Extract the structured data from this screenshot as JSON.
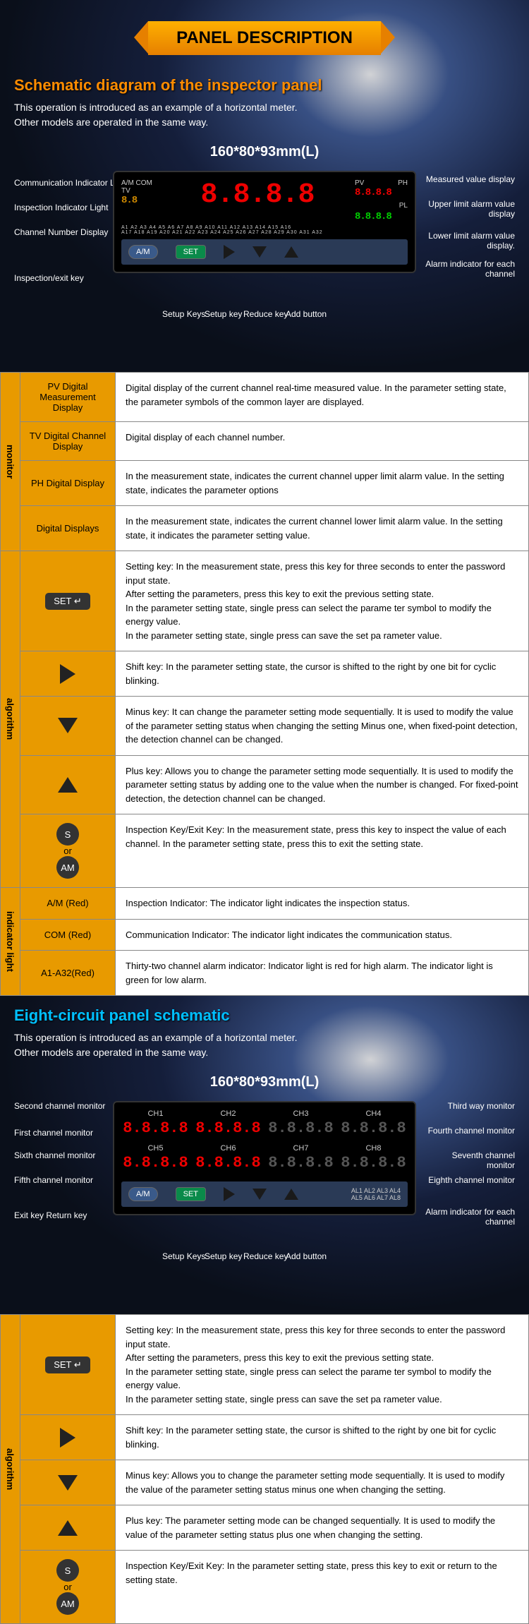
{
  "banner": "PANEL DESCRIPTION",
  "section1": {
    "title": "Schematic diagram of the inspector panel",
    "intro": "This operation is introduced as an example of a horizontal meter.\nOther models are operated in the same way.",
    "dim": "160*80*93mm(L)",
    "callouts_left": [
      "Communication Indicator Lamp",
      "Inspection Indicator Light",
      "Channel Number Display",
      "Inspection/exit key"
    ],
    "callouts_right": [
      "Measured value display",
      "Upper limit alarm value display",
      "Lower limit alarm value display.",
      "Alarm indicator for each channel"
    ],
    "btn_labels": [
      "Setup Keys",
      "Setup key",
      "Reduce key",
      "Add button"
    ],
    "panel": {
      "tv": "TV",
      "pv": "PV",
      "ph": "PH",
      "pl": "PL",
      "am_com": "A/M  COM",
      "big": "8.8.8.8",
      "big_tv": "8.8",
      "ph_val": "8.8.8.8",
      "pl_val": "8.8.8.8",
      "btn_am": "A/M",
      "btn_set": "SET",
      "ch1": "A1  A2  A3  A4  A5  A6  A7  A8  A9  A10  A11  A12  A13  A14  A15  A16",
      "ch2": "A17 A18 A19 A20 A21 A22 A23 A24 A25 A26 A27 A28 A29 A30 A31 A32"
    }
  },
  "table1": {
    "monitor": [
      {
        "k": "PV Digital Measurement Display",
        "v": "Digital display of the current channel real-time measured value. In the parameter setting state, the parameter symbols of the common layer are displayed."
      },
      {
        "k": "TV Digital Channel Display",
        "v": "Digital display of each channel number."
      },
      {
        "k": "PH Digital Display",
        "v": "In the measurement state, indicates the current channel upper limit alarm value. In the setting state, indicates the parameter options"
      },
      {
        "k": "Digital Displays",
        "v": "In the measurement state, indicates the current channel lower limit alarm value. In the setting state, it indicates the parameter setting value."
      }
    ],
    "algorithm": [
      {
        "icon": "set",
        "v": "Setting key: In the measurement state, press this key for three seconds to enter the password input state.\nAfter setting the parameters, press this key to exit the previous setting state.\nIn the parameter setting state, single press can select the parame ter symbol to modify the energy value.\nIn the parameter setting state, single press can save the set pa rameter value."
      },
      {
        "icon": "right",
        "v": "Shift key: In the parameter setting state, the cursor is shifted to the right by one bit for cyclic blinking."
      },
      {
        "icon": "down",
        "v": "Minus key: It can change the parameter setting mode sequentially. It is used to modify the value of the parameter setting status when changing the setting Minus one, when fixed-point detection, the detection channel can be changed."
      },
      {
        "icon": "up",
        "v": "Plus key: Allows you to change the parameter setting mode sequentially. It is used to modify the parameter setting status by adding one to the value when the number is changed. For fixed-point detection, the detection channel can be changed."
      },
      {
        "icon": "s_am",
        "v": "Inspection Key/Exit Key: In the measurement state, press this key to inspect the value of each channel. In the parameter setting state, press this to exit the setting state."
      }
    ],
    "indicator": [
      {
        "k": "A/M (Red)",
        "v": "Inspection Indicator: The indicator light indicates the inspection status."
      },
      {
        "k": "COM (Red)",
        "v": "Communication Indicator: The indicator light indicates the communication status."
      },
      {
        "k": "A1-A32(Red)",
        "v": "Thirty-two channel alarm indicator: Indicator light is red for high alarm. The indicator light is green for low alarm."
      }
    ],
    "labels": {
      "monitor": "monitor",
      "algorithm": "algorithm",
      "indicator": "indicator light",
      "set_icon": "SET",
      "s": "S",
      "am": "AM",
      "or": "or"
    }
  },
  "section2": {
    "title": "Eight-circuit panel schematic",
    "intro": "This operation is introduced as an example of a horizontal meter.\nOther models are operated in the same way.",
    "dim": "160*80*93mm(L)",
    "callouts_left": [
      "Second channel monitor",
      "First channel monitor",
      "Sixth channel monitor",
      "Fifth channel monitor",
      "Exit key Return key"
    ],
    "callouts_right": [
      "Third way monitor",
      "Fourth channel monitor",
      "Seventh channel monitor",
      "Eighth channel monitor",
      "Alarm indicator for each channel"
    ],
    "btn_labels": [
      "Setup Keys",
      "Setup key",
      "Reduce key",
      "Add button"
    ],
    "ch": [
      "CH1",
      "CH2",
      "CH3",
      "CH4",
      "CH5",
      "CH6",
      "CH7",
      "CH8"
    ],
    "disp": "8.8.8.8",
    "al1": "AL1  AL2  AL3  AL4",
    "al2": "AL5  AL6  AL7  AL8",
    "btn_am": "A/M",
    "btn_set": "SET"
  },
  "table2": {
    "algorithm": [
      {
        "icon": "set",
        "v": "Setting key: In the measurement state, press this key for three seconds to enter the password input state.\nAfter setting the parameters, press this key to exit the previous setting state.\nIn the parameter setting state, single press can select the parame ter symbol to modify the energy value.\nIn the parameter setting state, single press can save the set pa rameter value."
      },
      {
        "icon": "right",
        "v": "Shift key: In the parameter setting state, the cursor is shifted to the right by one bit for cyclic blinking."
      },
      {
        "icon": "down",
        "v": "Minus key: Allows you to change the parameter setting mode sequentially. It is used to modify the value of the parameter setting status minus one when changing the setting."
      },
      {
        "icon": "up",
        "v": "Plus key: The parameter setting mode can be changed sequentially. It is used to modify the value of the parameter setting status plus one when changing the setting."
      },
      {
        "icon": "s_am",
        "v": "Inspection Key/Exit Key: In the parameter setting state, press this key to exit or return to the setting state."
      }
    ],
    "label": "algorithm"
  }
}
